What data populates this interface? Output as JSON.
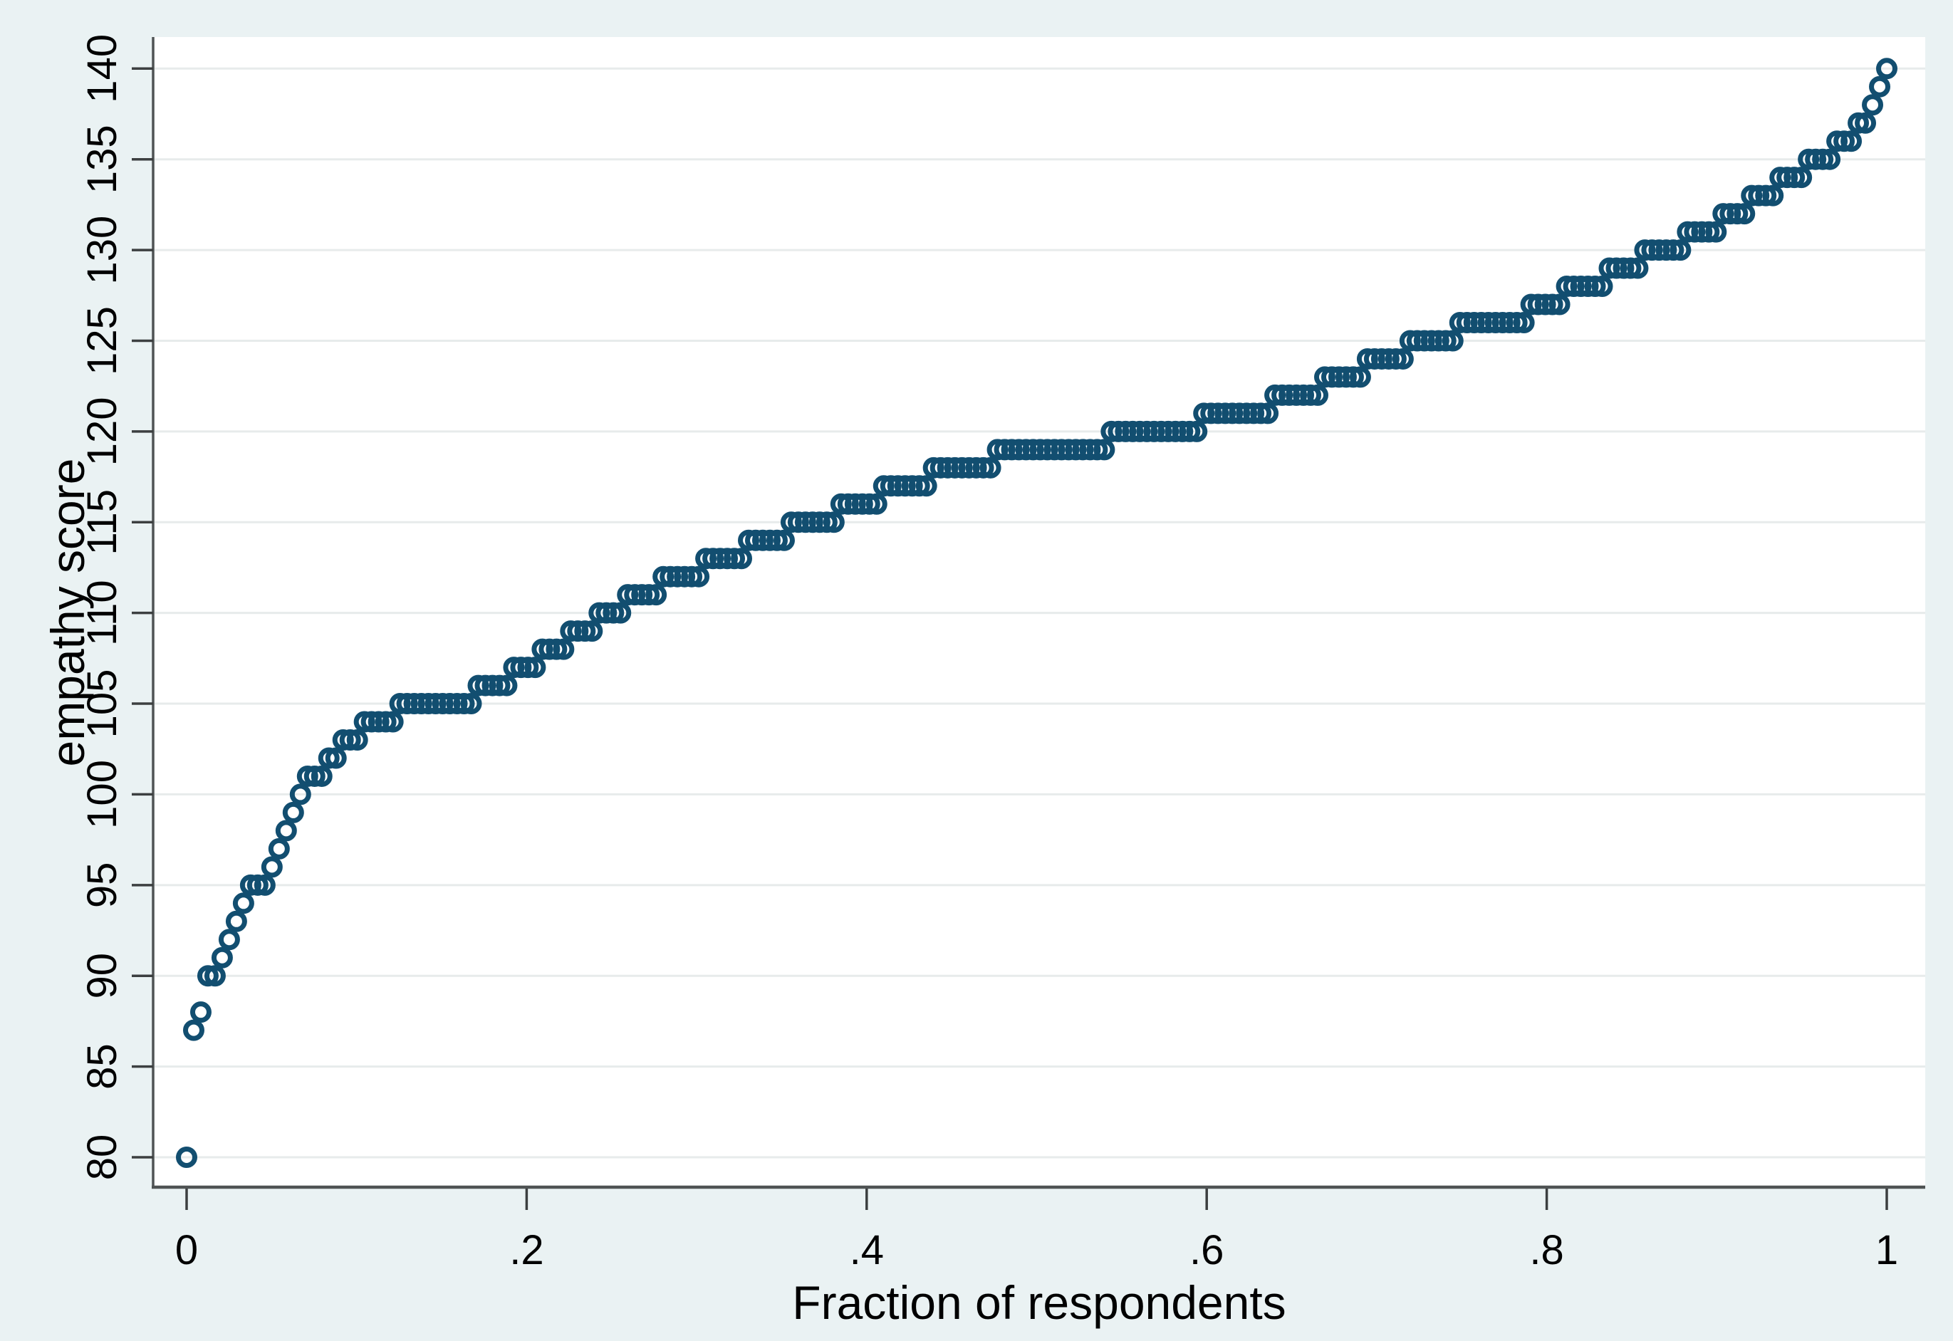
{
  "figure": {
    "background_color": "#eaf2f3",
    "plot_background_color": "#ffffff",
    "gridline_color": "#e7ebeb",
    "axis_line_color": "#4f5354",
    "tick_color": "#3c3f40",
    "text_color": "#000000"
  },
  "chart_data": {
    "type": "scatter",
    "subtype": "quantile-plot",
    "title": "",
    "xlabel": "Fraction of respondents",
    "ylabel": "empathy score",
    "xlim": [
      -0.02,
      1.023
    ],
    "ylim": [
      78.3,
      141.8
    ],
    "x_ticks": [
      0,
      0.2,
      0.4,
      0.6,
      0.8,
      1
    ],
    "x_tick_labels": [
      "0",
      ".2",
      ".4",
      ".6",
      ".8",
      "1"
    ],
    "y_ticks": [
      80,
      85,
      90,
      95,
      100,
      105,
      110,
      115,
      120,
      125,
      130,
      135,
      140
    ],
    "y_tick_labels": [
      "80",
      "85",
      "90",
      "95",
      "100",
      "105",
      "110",
      "115",
      "120",
      "125",
      "130",
      "135",
      "140"
    ],
    "grid": "horizontal-only",
    "legend": "none",
    "n_respondents": 240,
    "x_rule": "point i (1-based, scores sorted ascending) plotted at fraction (i-1)/(N-1)",
    "score_distribution": {
      "80": 1,
      "87": 1,
      "88": 1,
      "90": 2,
      "91": 1,
      "92": 1,
      "93": 1,
      "94": 1,
      "95": 3,
      "96": 1,
      "97": 1,
      "98": 1,
      "99": 1,
      "100": 1,
      "101": 3,
      "102": 2,
      "103": 3,
      "104": 5,
      "105": 11,
      "106": 5,
      "107": 4,
      "108": 4,
      "109": 4,
      "110": 4,
      "111": 5,
      "112": 6,
      "113": 6,
      "114": 6,
      "115": 7,
      "116": 6,
      "117": 7,
      "118": 9,
      "119": 16,
      "120": 13,
      "121": 10,
      "122": 7,
      "123": 6,
      "124": 6,
      "125": 7,
      "126": 10,
      "127": 5,
      "128": 6,
      "129": 5,
      "130": 6,
      "131": 5,
      "132": 4,
      "133": 4,
      "134": 4,
      "135": 4,
      "136": 3,
      "137": 2,
      "138": 1,
      "139": 1,
      "140": 1
    },
    "marker": {
      "shape": "hollow-circle",
      "color": "#124e70",
      "outer_radius_px": 11.5,
      "stroke_width_px": 7
    }
  }
}
